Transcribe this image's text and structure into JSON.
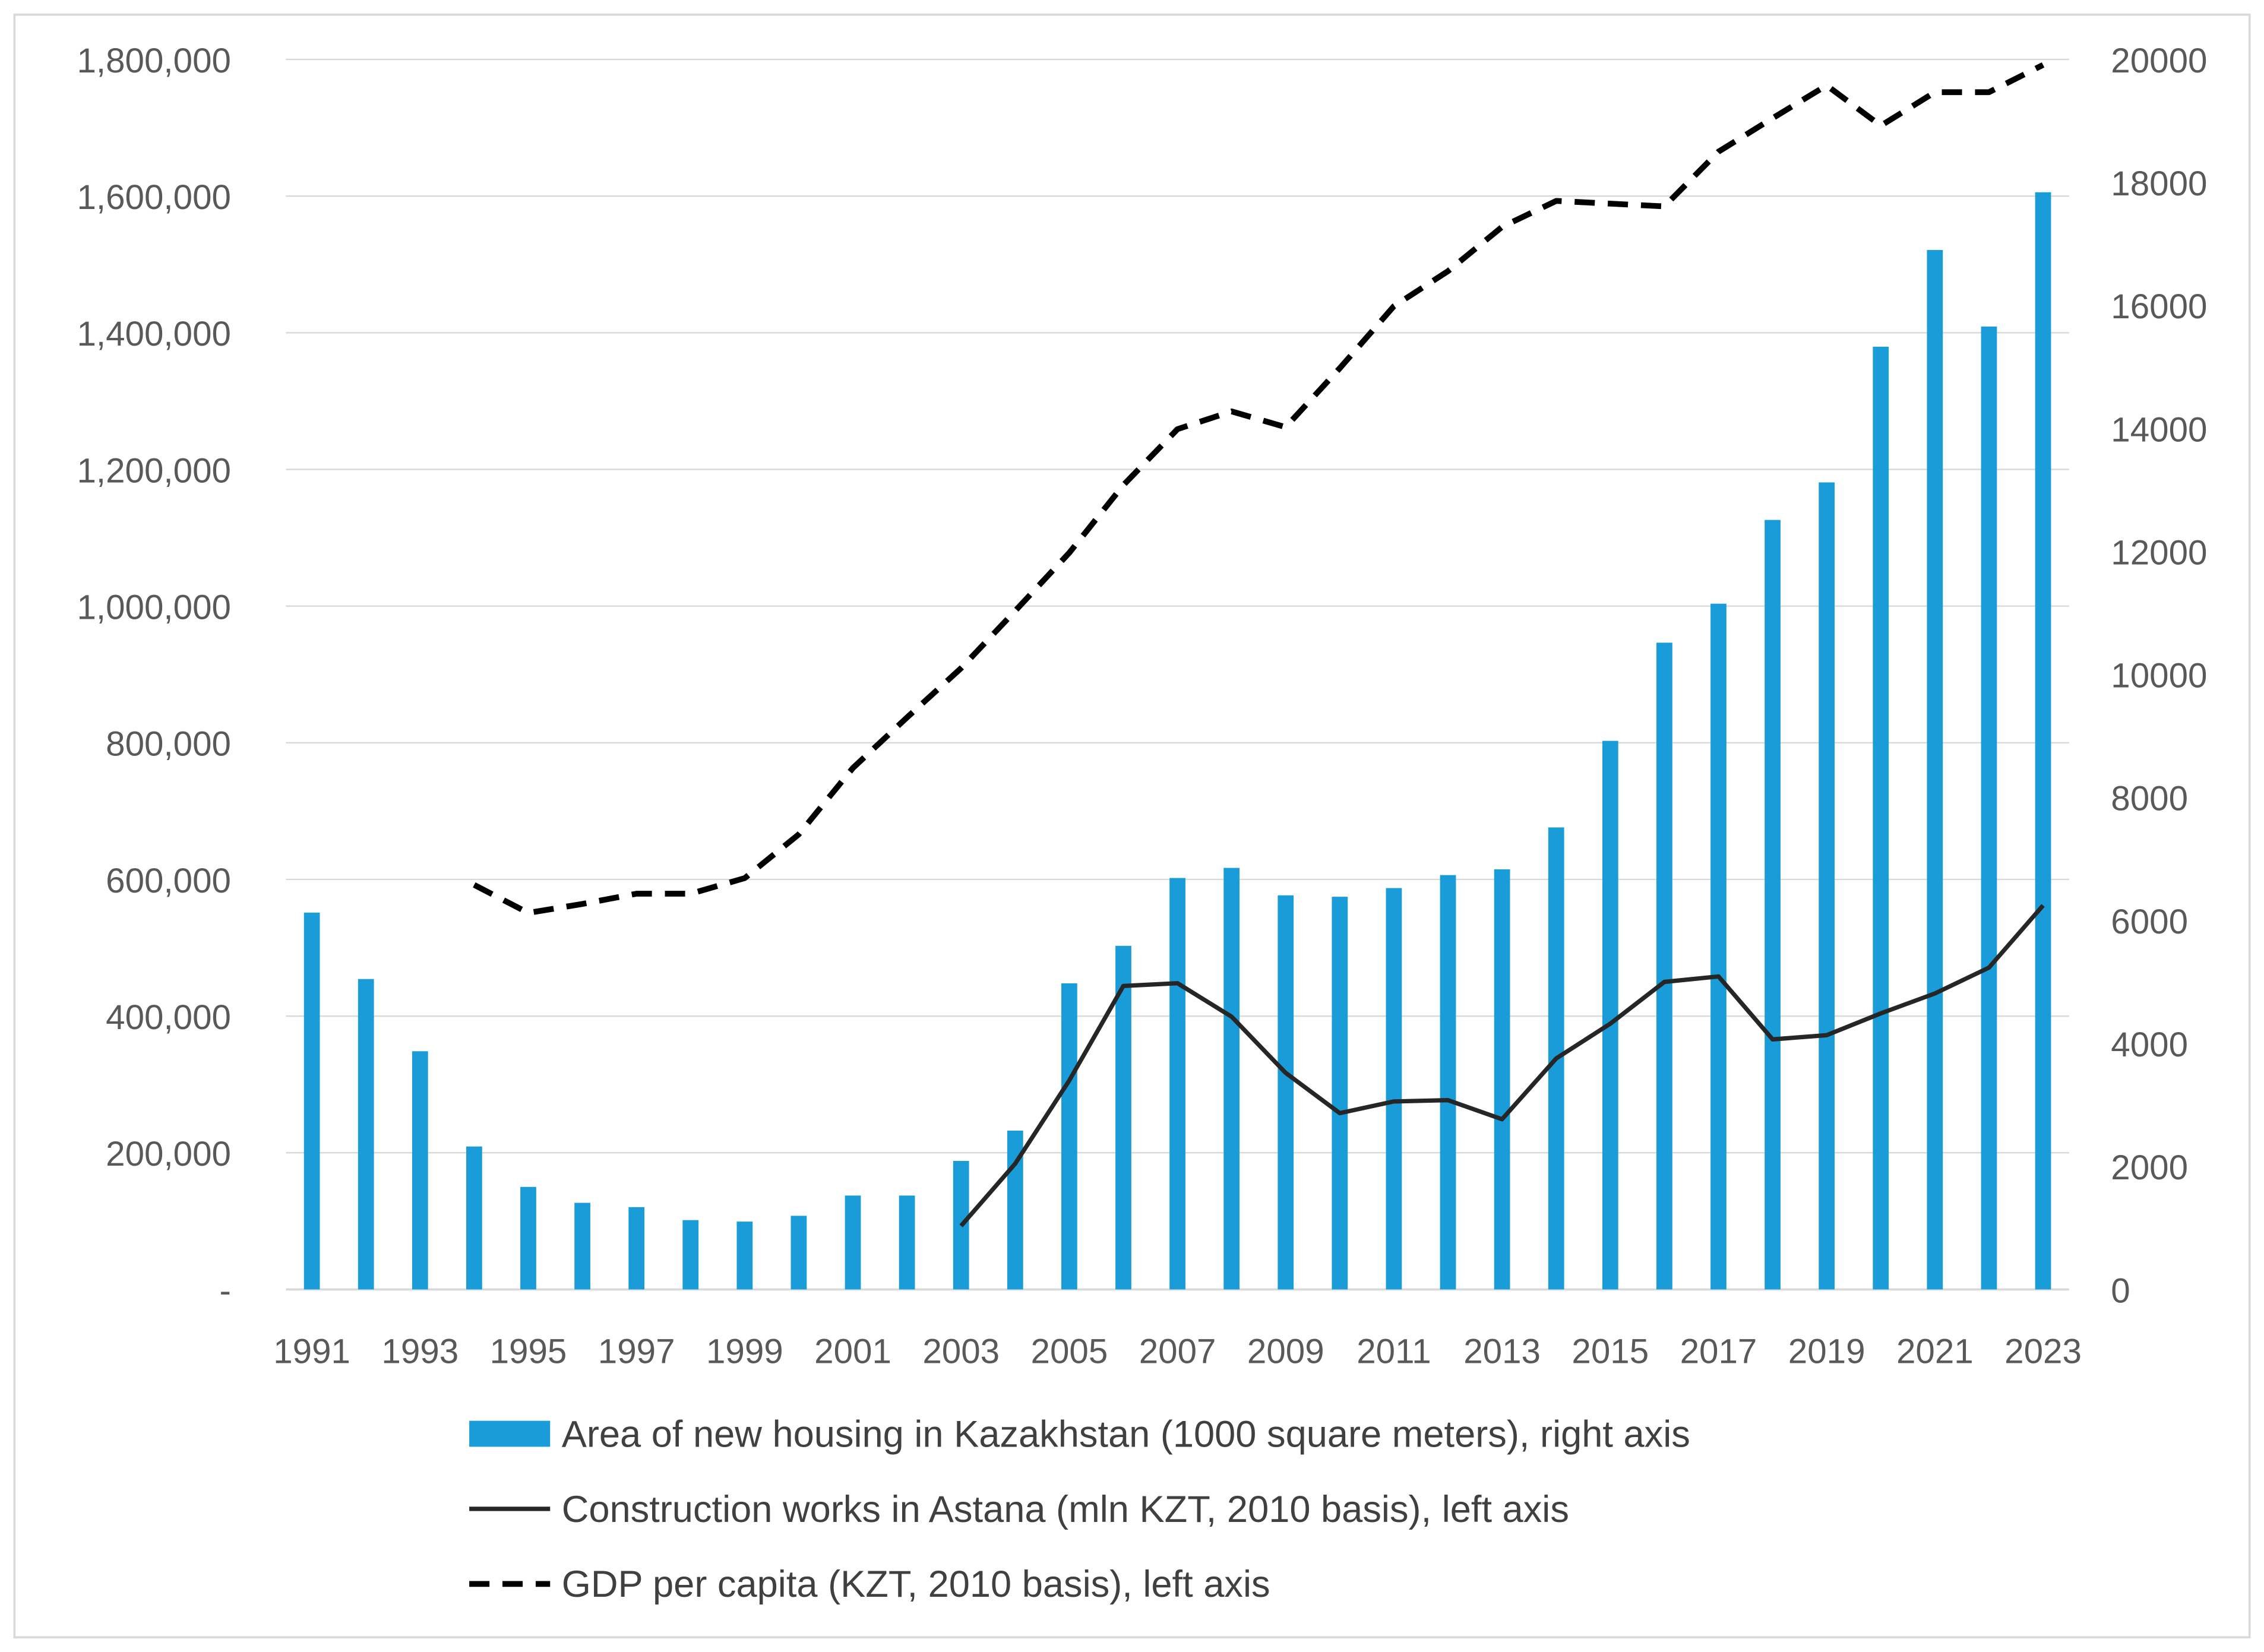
{
  "chart_data": {
    "type": "bar",
    "title": "",
    "x": [
      1991,
      1992,
      1993,
      1994,
      1995,
      1996,
      1997,
      1998,
      1999,
      2000,
      2001,
      2002,
      2003,
      2004,
      2005,
      2006,
      2007,
      2008,
      2009,
      2010,
      2011,
      2012,
      2013,
      2014,
      2015,
      2016,
      2017,
      2018,
      2019,
      2020,
      2021,
      2022,
      2023
    ],
    "x_tick_labels": [
      "1991",
      "1993",
      "1995",
      "1997",
      "1999",
      "2001",
      "2003",
      "2005",
      "2007",
      "2009",
      "2011",
      "2013",
      "2015",
      "2017",
      "2019",
      "2021",
      "2023"
    ],
    "left_axis": {
      "ylim": [
        0,
        1800000
      ],
      "tick_labels": [
        "-",
        "200,000",
        "400,000",
        "600,000",
        "800,000",
        "1,000,000",
        "1,200,000",
        "1,400,000",
        "1,600,000",
        "1,800,000"
      ]
    },
    "right_axis": {
      "ylim": [
        0,
        20000
      ],
      "tick_labels": [
        "0",
        "2000",
        "4000",
        "6000",
        "8000",
        "10000",
        "12000",
        "14000",
        "16000",
        "18000",
        "20000"
      ]
    },
    "grid": true,
    "legend_position": "bottom",
    "series": [
      {
        "name": "Area of new housing in Kazakhstan (1000 square meters), right axis",
        "type": "bar",
        "axis": "right",
        "color": "#1a9cd8",
        "values": [
          6127,
          5047,
          3873,
          2324,
          1667,
          1408,
          1338,
          1127,
          1103,
          1197,
          1526,
          1526,
          2089,
          2582,
          4977,
          5587,
          6690,
          6854,
          6408,
          6385,
          6526,
          6737,
          6831,
          7512,
          8920,
          10516,
          11150,
          12512,
          13122,
          15329,
          16901,
          15657,
          17840
        ]
      },
      {
        "name": "Construction works in Astana (mln KZT, 2010 basis), left axis",
        "type": "line",
        "style": "solid",
        "axis": "left",
        "color": "#262626",
        "values": [
          null,
          null,
          null,
          null,
          null,
          null,
          null,
          null,
          null,
          null,
          null,
          null,
          93000,
          184000,
          306000,
          444000,
          448000,
          399000,
          317000,
          258000,
          275000,
          277000,
          249000,
          338000,
          389000,
          450000,
          458000,
          366000,
          372000,
          404000,
          433000,
          471000,
          562000
        ]
      },
      {
        "name": "GDP per capita (KZT, 2010 basis), left axis",
        "type": "line",
        "style": "dashed",
        "axis": "left",
        "color": "#000000",
        "values": [
          null,
          null,
          null,
          592000,
          551000,
          564000,
          579000,
          579000,
          602000,
          666000,
          763000,
          837000,
          909000,
          993000,
          1078000,
          1177000,
          1259000,
          1285000,
          1262000,
          1348000,
          1439000,
          1490000,
          1555000,
          1593000,
          1589000,
          1585000,
          1665000,
          1714000,
          1762000,
          1703000,
          1752000,
          1752000,
          1792000
        ]
      }
    ]
  }
}
